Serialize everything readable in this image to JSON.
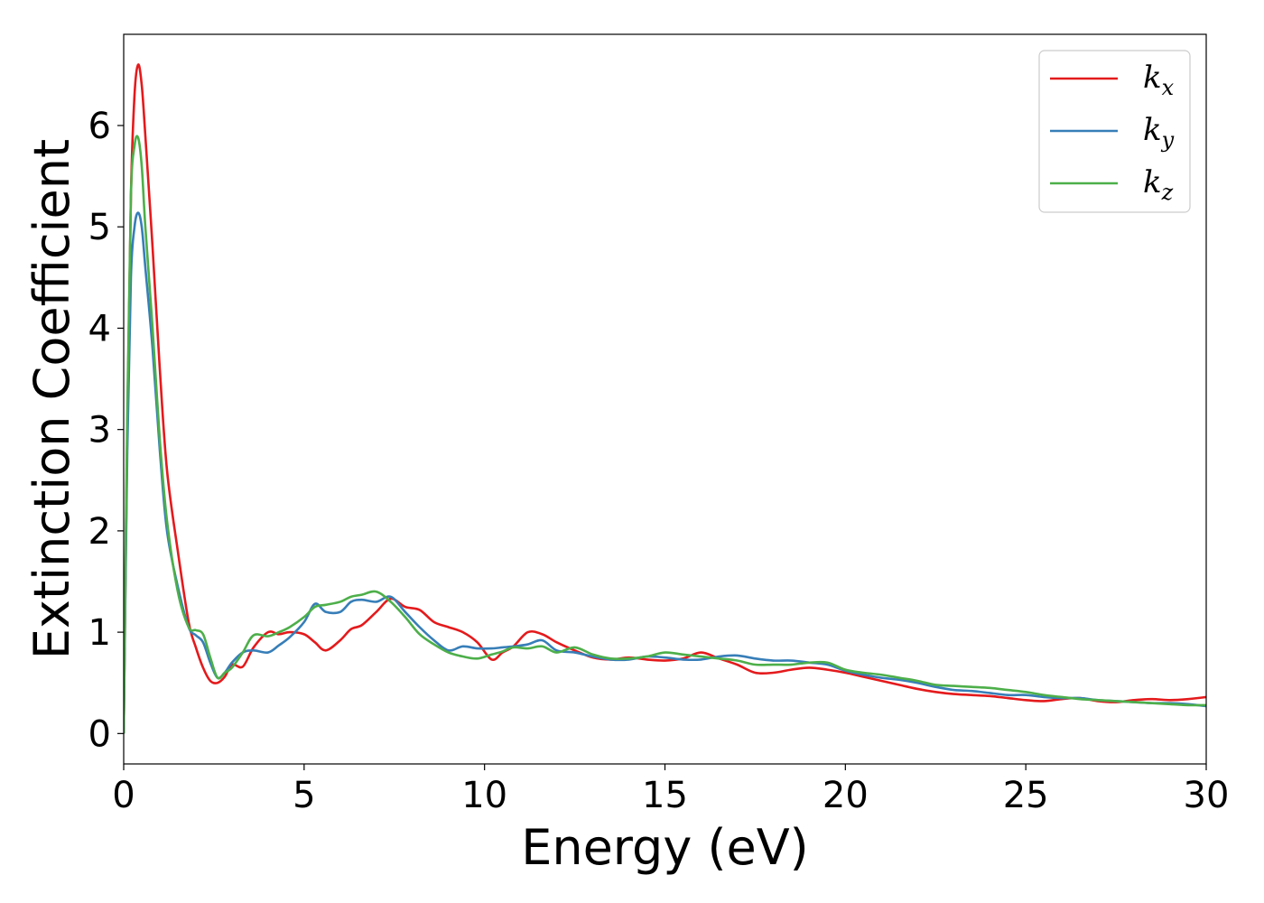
{
  "chart_data": {
    "type": "line",
    "title": "",
    "xlabel": "Energy (eV)",
    "ylabel": "Extinction Coefficient",
    "xlim": [
      0,
      30
    ],
    "ylim": [
      -0.3,
      6.9
    ],
    "xticks": [
      0,
      5,
      10,
      15,
      20,
      25,
      30
    ],
    "xtick_labels": [
      "0",
      "5",
      "10",
      "15",
      "20",
      "25",
      "30"
    ],
    "yticks": [
      0,
      1,
      2,
      3,
      4,
      5,
      6
    ],
    "ytick_labels": [
      "0",
      "1",
      "2",
      "3",
      "4",
      "5",
      "6"
    ],
    "grid": false,
    "legend_position": "top-right",
    "series": [
      {
        "name": "kx",
        "label_base": "k",
        "label_sub": "x",
        "color": "#e41a1c",
        "x": [
          0,
          0.1,
          0.2,
          0.3,
          0.4,
          0.5,
          0.6,
          0.8,
          1.0,
          1.2,
          1.5,
          1.8,
          2.0,
          2.2,
          2.4,
          2.6,
          2.8,
          3.0,
          3.3,
          3.6,
          4.0,
          4.3,
          4.6,
          5.0,
          5.3,
          5.6,
          6.0,
          6.3,
          6.6,
          7.0,
          7.4,
          7.8,
          8.2,
          8.6,
          9.0,
          9.4,
          9.8,
          10.2,
          10.5,
          10.8,
          11.2,
          11.6,
          12.0,
          12.5,
          13.0,
          13.5,
          14.0,
          14.5,
          15.0,
          15.5,
          16.0,
          16.5,
          17.0,
          17.5,
          18.0,
          18.5,
          19.0,
          19.5,
          20.0,
          20.5,
          21.0,
          21.5,
          22.0,
          22.5,
          23.0,
          23.5,
          24.0,
          24.5,
          25.0,
          25.5,
          26.0,
          26.5,
          27.0,
          27.5,
          28.0,
          28.5,
          29.0,
          29.5,
          30.0
        ],
        "y": [
          0,
          3.0,
          5.3,
          6.3,
          6.6,
          6.4,
          5.9,
          4.8,
          3.6,
          2.6,
          1.8,
          1.1,
          0.85,
          0.65,
          0.52,
          0.5,
          0.56,
          0.68,
          0.66,
          0.85,
          1.0,
          0.98,
          1.0,
          0.98,
          0.9,
          0.82,
          0.92,
          1.03,
          1.07,
          1.2,
          1.33,
          1.25,
          1.22,
          1.1,
          1.05,
          1.0,
          0.9,
          0.73,
          0.8,
          0.86,
          1.0,
          0.98,
          0.9,
          0.82,
          0.75,
          0.73,
          0.75,
          0.73,
          0.72,
          0.74,
          0.8,
          0.74,
          0.68,
          0.6,
          0.6,
          0.63,
          0.65,
          0.63,
          0.6,
          0.56,
          0.52,
          0.48,
          0.44,
          0.41,
          0.39,
          0.38,
          0.37,
          0.35,
          0.33,
          0.32,
          0.34,
          0.35,
          0.32,
          0.31,
          0.33,
          0.34,
          0.33,
          0.34,
          0.36
        ]
      },
      {
        "name": "ky",
        "label_base": "k",
        "label_sub": "y",
        "color": "#377eb8",
        "x": [
          0,
          0.1,
          0.2,
          0.3,
          0.4,
          0.5,
          0.6,
          0.8,
          1.0,
          1.2,
          1.5,
          1.8,
          2.0,
          2.2,
          2.4,
          2.6,
          2.8,
          3.0,
          3.3,
          3.6,
          4.0,
          4.3,
          4.6,
          5.0,
          5.3,
          5.6,
          6.0,
          6.3,
          6.6,
          7.0,
          7.4,
          7.8,
          8.2,
          8.6,
          9.0,
          9.4,
          9.8,
          10.2,
          10.5,
          10.8,
          11.2,
          11.6,
          12.0,
          12.5,
          13.0,
          13.5,
          14.0,
          14.5,
          15.0,
          15.5,
          16.0,
          16.5,
          17.0,
          17.5,
          18.0,
          18.5,
          19.0,
          19.5,
          20.0,
          20.5,
          21.0,
          21.5,
          22.0,
          22.5,
          23.0,
          23.5,
          24.0,
          24.5,
          25.0,
          25.5,
          26.0,
          26.5,
          27.0,
          27.5,
          28.0,
          28.5,
          29.0,
          29.5,
          30.0
        ],
        "y": [
          0,
          2.8,
          4.5,
          5.0,
          5.14,
          5.0,
          4.6,
          3.8,
          2.8,
          2.0,
          1.45,
          1.05,
          0.97,
          0.9,
          0.7,
          0.55,
          0.6,
          0.7,
          0.8,
          0.82,
          0.8,
          0.87,
          0.95,
          1.1,
          1.28,
          1.2,
          1.2,
          1.3,
          1.32,
          1.3,
          1.35,
          1.2,
          1.05,
          0.92,
          0.82,
          0.86,
          0.84,
          0.84,
          0.85,
          0.86,
          0.88,
          0.92,
          0.82,
          0.8,
          0.76,
          0.73,
          0.73,
          0.76,
          0.75,
          0.73,
          0.73,
          0.76,
          0.77,
          0.74,
          0.72,
          0.72,
          0.7,
          0.68,
          0.62,
          0.58,
          0.55,
          0.53,
          0.5,
          0.46,
          0.43,
          0.42,
          0.4,
          0.38,
          0.38,
          0.36,
          0.35,
          0.35,
          0.33,
          0.32,
          0.31,
          0.3,
          0.3,
          0.29,
          0.27
        ]
      },
      {
        "name": "kz",
        "label_base": "k",
        "label_sub": "z",
        "color": "#4daf4a",
        "x": [
          0,
          0.1,
          0.2,
          0.3,
          0.4,
          0.5,
          0.6,
          0.8,
          1.0,
          1.2,
          1.5,
          1.8,
          2.0,
          2.2,
          2.4,
          2.6,
          2.8,
          3.0,
          3.3,
          3.6,
          4.0,
          4.3,
          4.6,
          5.0,
          5.3,
          5.6,
          6.0,
          6.3,
          6.6,
          7.0,
          7.4,
          7.8,
          8.2,
          8.6,
          9.0,
          9.4,
          9.8,
          10.2,
          10.5,
          10.8,
          11.2,
          11.6,
          12.0,
          12.5,
          13.0,
          13.5,
          14.0,
          14.5,
          15.0,
          15.5,
          16.0,
          16.5,
          17.0,
          17.5,
          18.0,
          18.5,
          19.0,
          19.5,
          20.0,
          20.5,
          21.0,
          21.5,
          22.0,
          22.5,
          23.0,
          23.5,
          24.0,
          24.5,
          25.0,
          25.5,
          26.0,
          26.5,
          27.0,
          27.5,
          28.0,
          28.5,
          29.0,
          29.5,
          30.0
        ],
        "y": [
          0,
          3.2,
          5.3,
          5.8,
          5.88,
          5.6,
          5.0,
          4.0,
          2.9,
          2.1,
          1.4,
          1.05,
          1.02,
          0.98,
          0.75,
          0.55,
          0.6,
          0.65,
          0.8,
          0.97,
          0.96,
          1.0,
          1.05,
          1.15,
          1.25,
          1.27,
          1.3,
          1.35,
          1.37,
          1.4,
          1.3,
          1.15,
          0.98,
          0.88,
          0.8,
          0.76,
          0.74,
          0.78,
          0.81,
          0.85,
          0.84,
          0.86,
          0.8,
          0.85,
          0.78,
          0.74,
          0.74,
          0.76,
          0.8,
          0.78,
          0.76,
          0.74,
          0.72,
          0.68,
          0.68,
          0.68,
          0.7,
          0.7,
          0.63,
          0.6,
          0.58,
          0.55,
          0.52,
          0.48,
          0.47,
          0.46,
          0.45,
          0.43,
          0.41,
          0.38,
          0.36,
          0.34,
          0.33,
          0.32,
          0.31,
          0.3,
          0.29,
          0.28,
          0.28
        ]
      }
    ]
  }
}
